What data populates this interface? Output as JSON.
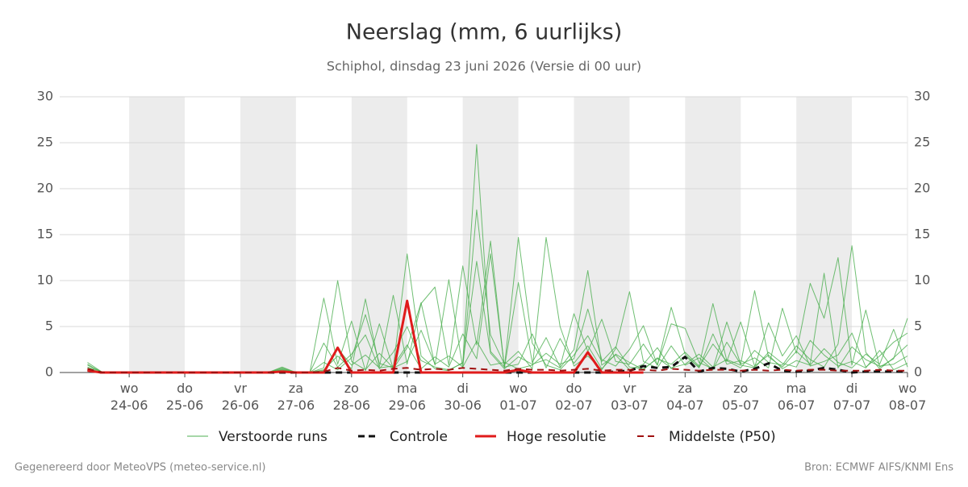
{
  "chart_data": {
    "type": "line",
    "title": "Neerslag (mm, 6 uurlijks)",
    "subtitle": "Schiphol, dinsdag 23 juni 2026 (Versie di 00 uur)",
    "categories": [
      null,
      null,
      null,
      "wo 24-06",
      null,
      null,
      null,
      "do 25-06",
      null,
      null,
      null,
      "vr 26-06",
      null,
      null,
      null,
      "za 27-06",
      null,
      null,
      null,
      "zo 28-06",
      null,
      null,
      null,
      "ma 29-06",
      null,
      null,
      null,
      "di 30-06",
      null,
      null,
      null,
      "wo 01-07",
      null,
      null,
      null,
      "do 02-07",
      null,
      null,
      null,
      "vr 03-07",
      null,
      null,
      null,
      "za 04-07",
      null,
      null,
      null,
      "zo 05-07",
      null,
      null,
      null,
      "ma 06-07",
      null,
      null,
      null,
      "di 07-07",
      null,
      null,
      null,
      "wo 08-07"
    ],
    "ylim": [
      0,
      30
    ],
    "yticks": [
      0,
      5,
      10,
      15,
      20,
      25,
      30
    ],
    "grid": true,
    "ensemble": {
      "name": "Verstoorde runs",
      "color": "#4caf50",
      "members": [
        [
          1.1,
          0.1,
          0,
          0,
          0,
          0,
          0,
          0,
          0,
          0,
          0,
          0,
          0,
          0,
          0.6,
          0,
          0,
          0.5,
          10.0,
          1.2,
          0.3,
          2.1,
          0.5,
          12.9,
          1.8,
          0.4,
          0.2,
          1.1,
          24.8,
          2.3,
          0.6,
          14.7,
          3.2,
          0.8,
          0.3,
          1.9,
          4.0,
          1.2,
          2.8,
          0.6,
          0.4,
          1.5,
          0.9,
          2.2,
          0.7,
          7.5,
          1.3,
          0.5,
          2.4,
          1.1,
          0.8,
          2.9,
          1.4,
          0.6,
          3.1,
          13.8,
          2.2,
          0.4,
          1.6,
          3.0
        ],
        [
          0.8,
          0.1,
          0,
          0,
          0,
          0,
          0,
          0,
          0,
          0,
          0,
          0,
          0,
          0,
          0.3,
          0,
          0,
          8.1,
          0.9,
          5.6,
          0.2,
          5.3,
          0.4,
          2.7,
          7.6,
          0.8,
          10.1,
          0.5,
          17.7,
          4.1,
          0.9,
          2.3,
          0.4,
          14.7,
          5.0,
          0.7,
          1.8,
          0.3,
          2.6,
          8.8,
          1.2,
          0.5,
          2.9,
          0.8,
          1.6,
          0.3,
          3.3,
          0.9,
          8.9,
          1.7,
          0.6,
          2.3,
          0.9,
          10.8,
          0.5,
          2.8,
          1.4,
          0.7,
          0.9,
          1.8
        ],
        [
          0.5,
          0,
          0,
          0,
          0,
          0,
          0,
          0,
          0,
          0,
          0,
          0,
          0,
          0,
          0.2,
          0,
          0,
          0.3,
          1.8,
          0.4,
          8.0,
          0.6,
          8.4,
          0.9,
          7.5,
          9.3,
          0.8,
          11.6,
          3.0,
          14.3,
          0.5,
          9.8,
          1.1,
          3.8,
          0.6,
          6.4,
          2.3,
          5.8,
          1.2,
          0.9,
          3.1,
          0.8,
          5.3,
          4.8,
          1.1,
          0.4,
          5.5,
          0.9,
          1.6,
          0.5,
          7.0,
          2.1,
          9.7,
          5.9,
          12.5,
          0.8,
          6.8,
          0.6,
          1.5,
          5.9
        ],
        [
          0.3,
          0,
          0,
          0,
          0,
          0,
          0,
          0,
          0,
          0,
          0,
          0,
          0,
          0,
          0.4,
          0,
          0,
          3.2,
          0.6,
          2.0,
          4.1,
          0.4,
          2.2,
          5.0,
          1.3,
          0.6,
          0.3,
          1.0,
          12.1,
          2.1,
          0.4,
          1.7,
          0.9,
          1.4,
          0.5,
          2.5,
          11.1,
          0.8,
          1.9,
          0.3,
          0.9,
          2.7,
          0.4,
          1.8,
          0.6,
          3.1,
          1.2,
          5.5,
          0.7,
          1.9,
          0.4,
          1.3,
          0.8,
          2.6,
          1.1,
          0.5,
          2.0,
          0.9,
          4.7,
          0.6
        ],
        [
          0.9,
          0,
          0,
          0,
          0,
          0,
          0,
          0,
          0,
          0,
          0,
          0,
          0,
          0,
          0.3,
          0,
          0,
          0.2,
          2.6,
          0.8,
          1.9,
          0.5,
          0.7,
          3.0,
          0.4,
          1.7,
          0.6,
          4.2,
          1.5,
          12.9,
          0.6,
          0.9,
          4.2,
          0.5,
          3.7,
          1.0,
          2.9,
          0.4,
          2.0,
          1.1,
          0.3,
          1.6,
          0.5,
          0.9,
          2.0,
          0.6,
          1.4,
          0.8,
          0.5,
          2.2,
          1.0,
          0.6,
          3.5,
          1.9,
          0.7,
          1.2,
          0.5,
          2.4,
          0.3,
          1.0
        ],
        [
          0.6,
          0.1,
          0,
          0,
          0,
          0,
          0,
          0,
          0,
          0,
          0,
          0,
          0,
          0,
          0.5,
          0,
          0,
          1.1,
          0.3,
          1.6,
          6.3,
          1.0,
          0.5,
          1.2,
          4.6,
          0.9,
          1.8,
          0.6,
          3.4,
          0.8,
          1.1,
          0.4,
          0.8,
          2.1,
          0.9,
          1.5,
          6.9,
          1.4,
          0.7,
          2.5,
          5.1,
          0.8,
          7.1,
          2.0,
          0.5,
          4.2,
          0.9,
          1.3,
          0.6,
          5.4,
          1.8,
          4.0,
          0.7,
          1.2,
          1.9,
          4.3,
          0.6,
          1.8,
          3.3,
          4.3
        ]
      ]
    },
    "series": [
      {
        "name": "Controle",
        "color": "#111111",
        "dash": true,
        "width": 3,
        "values": [
          0.3,
          0,
          0,
          0,
          0,
          0,
          0,
          0,
          0,
          0,
          0,
          0,
          0,
          0,
          0,
          0,
          0,
          0,
          0,
          0,
          0,
          0,
          0,
          0,
          0,
          0,
          0,
          0,
          0,
          0,
          0,
          0,
          0,
          0,
          0,
          0,
          0,
          0,
          0.1,
          0.2,
          0.7,
          0.5,
          0.6,
          1.7,
          0.1,
          0.5,
          0.4,
          0.1,
          0.4,
          1.0,
          0.2,
          0.1,
          0.2,
          0.5,
          0.3,
          0,
          0.1,
          0.1,
          0.1,
          0.1
        ]
      },
      {
        "name": "Hoge resolutie",
        "color": "#e01b1b",
        "dash": false,
        "width": 3,
        "values": [
          0.2,
          0,
          0,
          0,
          0,
          0,
          0,
          0,
          0,
          0,
          0,
          0,
          0,
          0,
          0.1,
          0,
          0,
          0,
          2.7,
          0,
          0,
          0,
          0,
          7.8,
          0,
          0,
          0,
          0,
          0,
          0,
          0,
          0.3,
          0,
          0,
          0,
          0,
          2.2,
          0,
          0,
          0,
          0,
          null,
          null,
          null,
          null,
          null,
          null,
          null,
          null,
          null,
          null,
          null,
          null,
          null,
          null,
          null,
          null,
          null,
          null,
          null
        ]
      },
      {
        "name": "Middelste (P50)",
        "color": "#a01010",
        "dash": true,
        "width": 2,
        "values": [
          0.4,
          0,
          0,
          0,
          0,
          0,
          0,
          0,
          0,
          0,
          0,
          0,
          0,
          0,
          0,
          0,
          0,
          0.1,
          0.5,
          0.2,
          0.3,
          0.2,
          0.4,
          0.5,
          0.3,
          0.4,
          0.3,
          0.5,
          0.4,
          0.3,
          0.2,
          0.4,
          0.3,
          0.3,
          0.2,
          0.3,
          0.4,
          0.2,
          0.3,
          0.3,
          0.3,
          0.2,
          0.4,
          0.3,
          0.2,
          0.3,
          0.3,
          0.2,
          0.3,
          0.2,
          0.3,
          0.2,
          0.3,
          0.3,
          0.2,
          0.2,
          0.2,
          0.3,
          0.2,
          0.2
        ]
      }
    ],
    "footer": {
      "left": "Gegenereerd door MeteoVPS (meteo-service.nl)",
      "right": "Bron: ECMWF AIFS/KNMI Ens"
    }
  }
}
